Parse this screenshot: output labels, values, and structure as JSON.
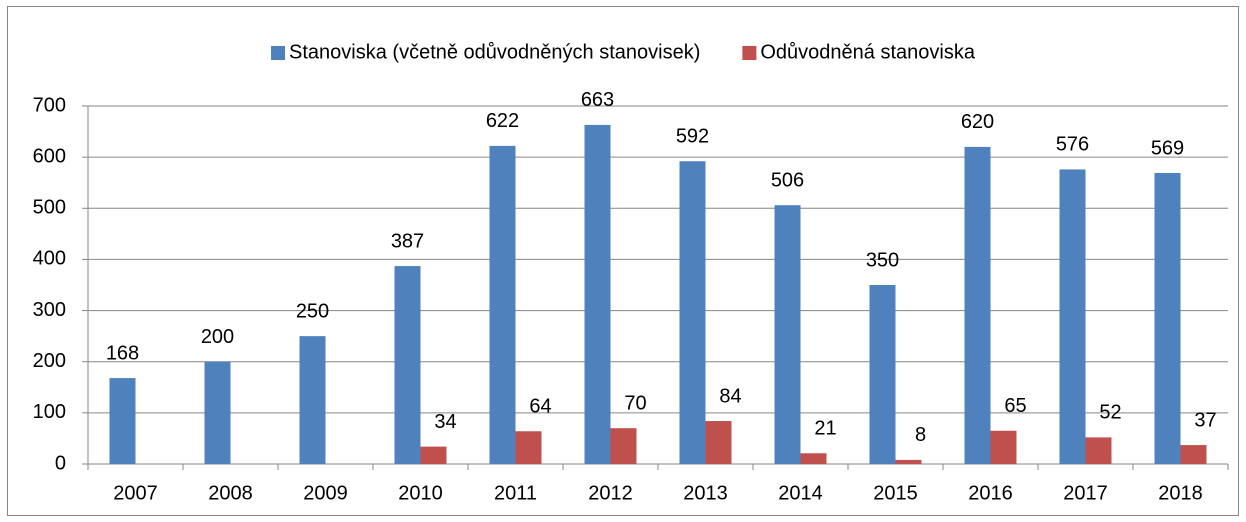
{
  "chart_data": {
    "type": "bar",
    "categories": [
      "2007",
      "2008",
      "2009",
      "2010",
      "2011",
      "2012",
      "2013",
      "2014",
      "2015",
      "2016",
      "2017",
      "2018"
    ],
    "series": [
      {
        "name": "Stanoviska (včetně odůvodněných stanovisek)",
        "color": "#4f81bd",
        "values": [
          168,
          200,
          250,
          387,
          622,
          663,
          592,
          506,
          350,
          620,
          576,
          569
        ]
      },
      {
        "name": "Odůvodněná stanoviska",
        "color": "#c0504d",
        "values": [
          null,
          null,
          null,
          34,
          64,
          70,
          84,
          21,
          8,
          65,
          52,
          37
        ]
      }
    ],
    "ylim": [
      0,
      700
    ],
    "yticks": [
      0,
      100,
      200,
      300,
      400,
      500,
      600,
      700
    ],
    "grid": true,
    "legend": "top"
  }
}
